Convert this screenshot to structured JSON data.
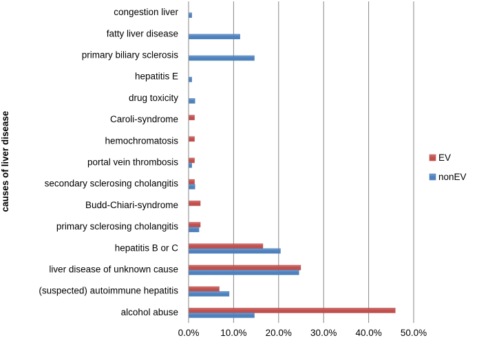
{
  "chart_data": {
    "type": "bar",
    "orientation": "horizontal",
    "title": "",
    "xlabel": "",
    "ylabel": "causes of liver disease",
    "xlim": [
      0,
      50
    ],
    "x_ticks": [
      0,
      10,
      20,
      30,
      40,
      50
    ],
    "x_tick_labels": [
      "0.0%",
      "10.0%",
      "20.0%",
      "30.0%",
      "40.0%",
      "50.0%"
    ],
    "grid": "vertical",
    "legend_position": "right",
    "categories": [
      "congestion liver",
      "fatty liver disease",
      "primary biliary sclerosis",
      "hepatitis E",
      "drug toxicity",
      "Caroli-syndrome",
      "hemochromatosis",
      "portal vein thrombosis",
      "secondary sclerosing cholangitis",
      "Budd-Chiari-syndrome",
      "primary sclerosing cholangitis",
      "hepatitis B or C",
      "liver disease of unknown cause",
      "(suspected) autoimmune hepatitis",
      "alcohol abuse"
    ],
    "series": [
      {
        "name": "EV",
        "color": "#c0504d",
        "values": [
          0,
          0,
          0,
          0,
          0,
          1.3,
          1.3,
          1.3,
          1.3,
          2.6,
          2.6,
          16.5,
          24.9,
          6.8,
          45.9
        ]
      },
      {
        "name": "nonEV",
        "color": "#4f81bd",
        "values": [
          0.7,
          11.4,
          14.6,
          0.7,
          1.4,
          0,
          0,
          0.7,
          1.4,
          0,
          2.3,
          20.4,
          24.5,
          9.0,
          14.6
        ]
      }
    ]
  }
}
